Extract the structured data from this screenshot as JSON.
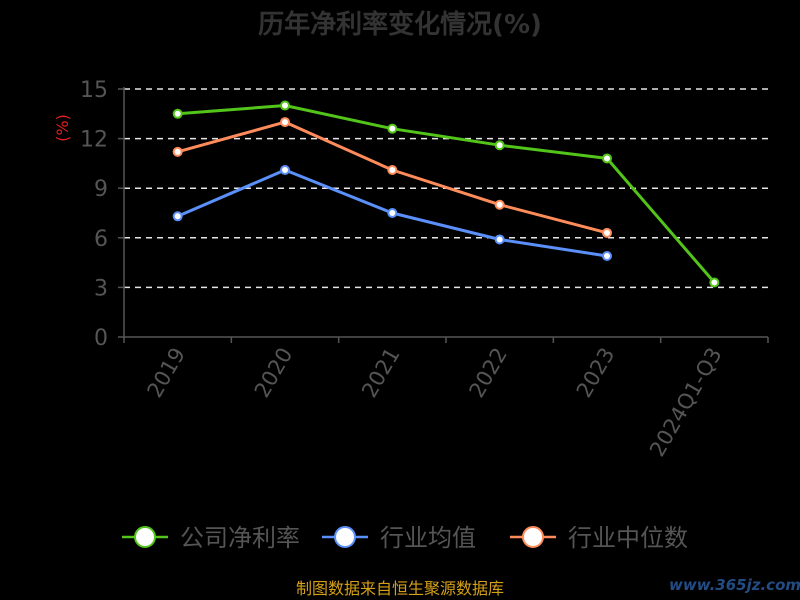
{
  "chart_data": {
    "type": "line",
    "title": "历年净利率变化情况(%)",
    "ylabel": "(%)",
    "xlabel": "",
    "categories": [
      "2019",
      "2020",
      "2021",
      "2022",
      "2023",
      "2024Q1-Q3"
    ],
    "y_ticks": [
      "0",
      "3",
      "6",
      "9",
      "12",
      "15"
    ],
    "ylim": [
      0,
      15
    ],
    "grid": true,
    "legend_position": "bottom",
    "series": [
      {
        "name": "公司净利率",
        "color": "#52c41a",
        "values": [
          13.5,
          14.0,
          12.6,
          11.6,
          10.8,
          3.3
        ]
      },
      {
        "name": "行业均值",
        "color": "#5b8ff9",
        "values": [
          7.3,
          10.1,
          7.5,
          5.9,
          4.9,
          null
        ]
      },
      {
        "name": "行业中位数",
        "color": "#ff8c5a",
        "values": [
          11.2,
          13.0,
          10.1,
          8.0,
          6.3,
          null
        ]
      }
    ]
  },
  "footer": {
    "source_text": "制图数据来自恒生聚源数据库"
  },
  "watermark": {
    "text": "www.365jz.com"
  }
}
